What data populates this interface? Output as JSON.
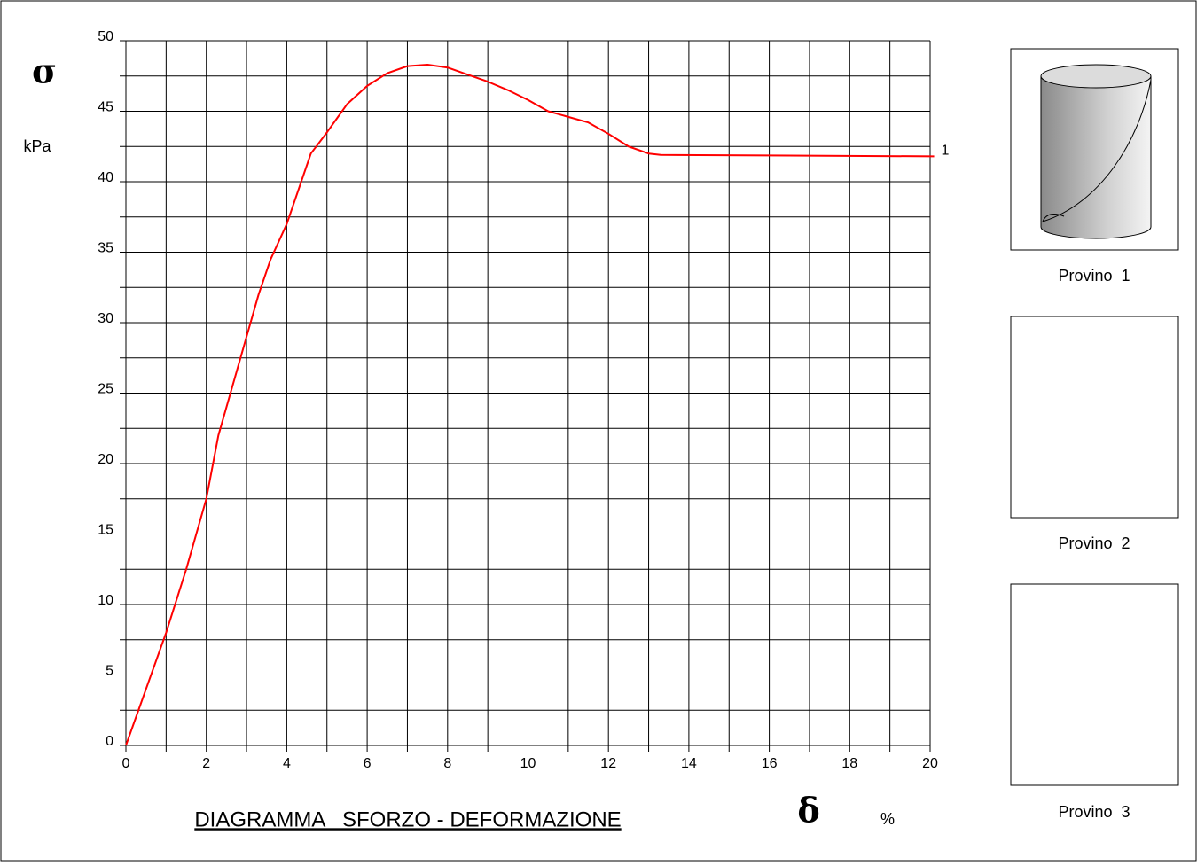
{
  "chart_data": {
    "type": "line",
    "title": "DIAGRAMMA   SFORZO - DEFORMAZIONE",
    "y_symbol": "σ",
    "y_unit": "kPa",
    "x_symbol": "δ",
    "x_unit": "%",
    "x": [
      0,
      0.5,
      1,
      1.5,
      2,
      2.3,
      2.7,
      3,
      3.3,
      3.6,
      4,
      4.3,
      4.6,
      5,
      5.5,
      6,
      6.5,
      7,
      7.5,
      8,
      8.5,
      9,
      9.5,
      10,
      10.5,
      11,
      11.5,
      12,
      12.5,
      13,
      13.3,
      20.1
    ],
    "series": [
      {
        "name": "1",
        "color": "#ff0000",
        "values": [
          0,
          4,
          8,
          12.5,
          17.5,
          22,
          26,
          29,
          32,
          34.5,
          37,
          39.5,
          42,
          43.5,
          45.5,
          46.8,
          47.7,
          48.2,
          48.3,
          48.1,
          47.6,
          47.1,
          46.5,
          45.8,
          45.0,
          44.6,
          44.2,
          43.4,
          42.5,
          42.0,
          41.9,
          41.8
        ]
      }
    ],
    "xlim": [
      0,
      20
    ],
    "ylim": [
      0,
      50
    ],
    "xticks": [
      0,
      2,
      4,
      6,
      8,
      10,
      12,
      14,
      16,
      18,
      20
    ],
    "yticks": [
      0,
      5,
      10,
      15,
      20,
      25,
      30,
      35,
      40,
      45,
      50
    ],
    "xgrid": [
      0,
      1,
      2,
      3,
      4,
      5,
      6,
      7,
      8,
      9,
      10,
      11,
      12,
      13,
      14,
      15,
      16,
      17,
      18,
      19,
      20
    ],
    "ygrid": [
      0,
      2.5,
      5,
      7.5,
      10,
      12.5,
      15,
      17.5,
      20,
      22.5,
      25,
      27.5,
      30,
      32.5,
      35,
      37.5,
      40,
      42.5,
      45,
      47.5,
      50
    ],
    "grid": true
  },
  "panels": [
    "Provino  1",
    "Provino  2",
    "Provino  3"
  ]
}
